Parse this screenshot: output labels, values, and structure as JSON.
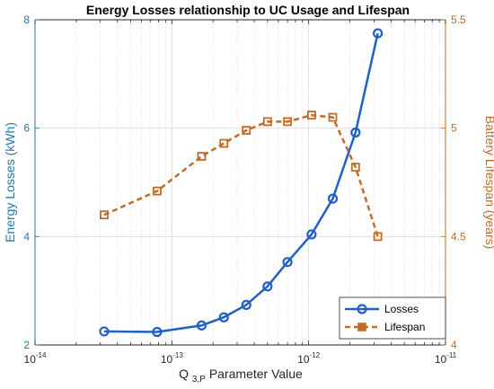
{
  "colors": {
    "losses": "#2160C4",
    "lifespan": "#C36A26",
    "left_axis": "#1F77B4",
    "right_axis": "#C36A26",
    "grid": "#DCDCDC",
    "axes": "#262626"
  },
  "chart_data": {
    "type": "line",
    "title": "Energy Losses relationship to UC Usage and Lifespan",
    "xlabel": {
      "main": "Q",
      "sub": "3,P",
      "rest": " Parameter Value"
    },
    "ylabel_left": "Energy Losses (kWh)",
    "ylabel_right": "Battery Lifespan (years)",
    "x_scale": "log",
    "xlim": [
      1e-14,
      1e-11
    ],
    "x_ticks": [
      {
        "base": "10",
        "exp": "-14",
        "value": 1e-14
      },
      {
        "base": "10",
        "exp": "-13",
        "value": 1e-13
      },
      {
        "base": "10",
        "exp": "-12",
        "value": 1e-12
      },
      {
        "base": "10",
        "exp": "-11",
        "value": 1e-11
      }
    ],
    "ylim_left": [
      2,
      8
    ],
    "y_ticks_left": [
      2,
      4,
      6,
      8
    ],
    "ylim_right": [
      4,
      5.5
    ],
    "y_ticks_right": [
      "4",
      "4.5",
      "5",
      "5.5"
    ],
    "y_ticks_right_values": [
      4,
      4.5,
      5,
      5.5
    ],
    "grid": true,
    "legend_position": "bottom-right",
    "series": [
      {
        "name": "Losses",
        "axis": "left",
        "style": "solid",
        "marker": "circle",
        "x": [
          3.2e-14,
          7.8e-14,
          1.65e-13,
          2.4e-13,
          3.5e-13,
          5e-13,
          7e-13,
          1.05e-12,
          1.5e-12,
          2.2e-12,
          3.2e-12
        ],
        "y": [
          2.25,
          2.24,
          2.36,
          2.51,
          2.74,
          3.08,
          3.53,
          4.04,
          4.7,
          5.92,
          7.75
        ]
      },
      {
        "name": "Lifespan",
        "axis": "right",
        "style": "dashed",
        "marker": "square",
        "x": [
          3.2e-14,
          7.8e-14,
          1.65e-13,
          2.4e-13,
          3.5e-13,
          5e-13,
          7e-13,
          1.05e-12,
          1.5e-12,
          2.2e-12,
          3.2e-12
        ],
        "y": [
          4.6,
          4.71,
          4.87,
          4.93,
          4.99,
          5.03,
          5.03,
          5.06,
          5.05,
          4.82,
          4.5
        ]
      }
    ]
  }
}
